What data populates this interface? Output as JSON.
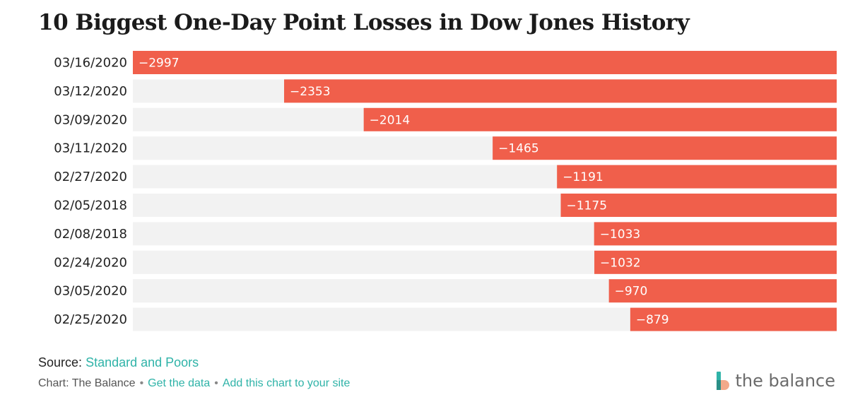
{
  "chart_data": {
    "type": "bar",
    "orientation": "horizontal",
    "title": "10 Biggest One-Day Point Losses in Dow Jones History",
    "categories": [
      "03/16/2020",
      "03/12/2020",
      "03/09/2020",
      "03/11/2020",
      "02/27/2020",
      "02/05/2018",
      "02/08/2018",
      "02/24/2020",
      "03/05/2020",
      "02/25/2020"
    ],
    "values": [
      -2997,
      -2353,
      -2014,
      -1465,
      -1191,
      -1175,
      -1033,
      -1032,
      -970,
      -879
    ],
    "labels": [
      "−2997",
      "−2353",
      "−2014",
      "−1465",
      "−1191",
      "−1175",
      "−1033",
      "−1032",
      "−970",
      "−879"
    ],
    "xlim": [
      -2997,
      0
    ],
    "xlabel": "",
    "ylabel": "",
    "grid": false,
    "legend": "none",
    "bar_color": "#f05f4b",
    "track_color": "#f2f2f2",
    "label_color": "#ffffff"
  },
  "footer": {
    "source_label": "Source:",
    "source_link": "Standard and Poors",
    "chart_credit": "Chart: The Balance",
    "separator": "•",
    "get_data": "Get the data",
    "add_chart": "Add this chart to your site",
    "link_color": "#2fb3a8"
  },
  "brand": {
    "name": "the balance",
    "logo_icon": "the-balance-logo-icon"
  }
}
